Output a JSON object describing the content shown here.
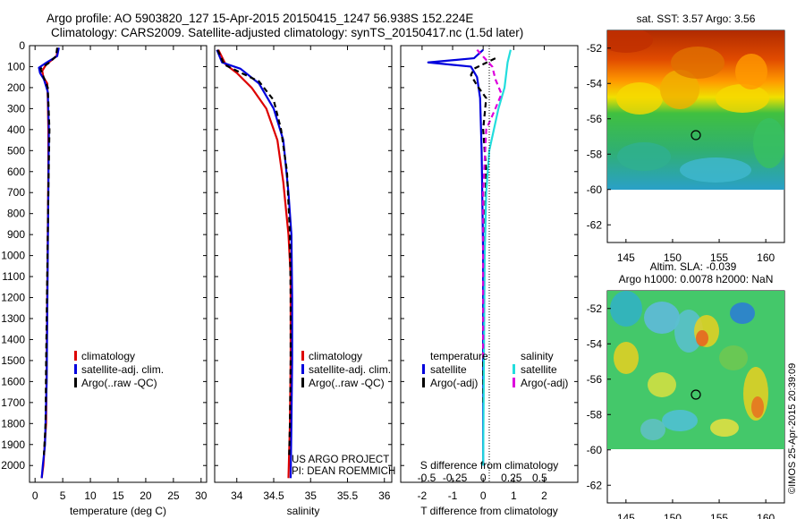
{
  "title_line1": "Argo profile: AO 5903820_127 15-Apr-2015 20150415_1247 56.938S 152.224E",
  "title_line2": "Climatology: CARS2009. Satellite-adjusted climatology: synTS_20150417.nc (1.5d later)",
  "colors": {
    "climatology": "#dd0000",
    "satellite": "#0000dd",
    "argo": "#000000",
    "sat_salinity": "#22dddd",
    "argo_adj": "#dd00dd"
  },
  "chart_data": [
    {
      "type": "line",
      "panel": "temperature",
      "xlabel": "temperature (deg C)",
      "ylabel": "",
      "xlim": [
        -1,
        31
      ],
      "ylim": [
        2080,
        0
      ],
      "xticks": [
        "0",
        "5",
        "10",
        "15",
        "20",
        "25",
        "30"
      ],
      "yticks": [
        "0",
        "100",
        "200",
        "300",
        "400",
        "500",
        "600",
        "700",
        "800",
        "900",
        "1000",
        "1100",
        "1200",
        "1300",
        "1400",
        "1500",
        "1600",
        "1700",
        "1800",
        "1900",
        "2000"
      ],
      "legend": [
        "climatology",
        "satellite-adj. clim.",
        "Argo(..raw -QC)"
      ],
      "series": [
        {
          "name": "climatology",
          "color": "#dd0000",
          "points": [
            [
              4.1,
              10
            ],
            [
              3.9,
              50
            ],
            [
              2.0,
              90
            ],
            [
              1.3,
              120
            ],
            [
              1.5,
              150
            ],
            [
              2.2,
              180
            ],
            [
              2.3,
              250
            ],
            [
              2.4,
              400
            ],
            [
              2.4,
              600
            ],
            [
              2.3,
              900
            ],
            [
              2.2,
              1200
            ],
            [
              2.1,
              1500
            ],
            [
              2.0,
              1800
            ],
            [
              1.5,
              2000
            ],
            [
              1.2,
              2060
            ]
          ]
        },
        {
          "name": "satellite-adj. clim.",
          "color": "#0000dd",
          "points": [
            [
              4.3,
              10
            ],
            [
              4.0,
              50
            ],
            [
              2.1,
              80
            ],
            [
              0.7,
              105
            ],
            [
              0.9,
              130
            ],
            [
              1.6,
              160
            ],
            [
              2.3,
              220
            ],
            [
              2.5,
              400
            ],
            [
              2.4,
              700
            ],
            [
              2.3,
              1000
            ],
            [
              2.2,
              1300
            ],
            [
              2.1,
              1600
            ],
            [
              1.8,
              1900
            ],
            [
              1.4,
              2000
            ],
            [
              1.2,
              2060
            ]
          ]
        },
        {
          "name": "Argo(..raw -QC)",
          "color": "#000000",
          "points": [
            [
              4.0,
              10
            ],
            [
              3.8,
              50
            ],
            [
              2.6,
              80
            ],
            [
              1.0,
              110
            ],
            [
              1.4,
              140
            ],
            [
              2.3,
              200
            ],
            [
              2.6,
              400
            ],
            [
              2.4,
              700
            ],
            [
              2.2,
              1100
            ],
            [
              2.0,
              1500
            ],
            [
              1.9,
              1800
            ],
            [
              1.6,
              1950
            ]
          ]
        }
      ]
    },
    {
      "type": "line",
      "panel": "salinity",
      "xlabel": "salinity",
      "ylabel": "",
      "xlim": [
        33.7,
        36.1
      ],
      "ylim": [
        2080,
        0
      ],
      "xticks": [
        "34",
        "34.5",
        "35",
        "35.5",
        "36"
      ],
      "legend": [
        "climatology",
        "satellite-adj. clim.",
        "Argo(..raw -QC)"
      ],
      "series": [
        {
          "name": "climatology",
          "color": "#dd0000",
          "points": [
            [
              33.75,
              20
            ],
            [
              33.85,
              90
            ],
            [
              34.0,
              130
            ],
            [
              34.2,
              200
            ],
            [
              34.4,
              300
            ],
            [
              34.55,
              450
            ],
            [
              34.63,
              650
            ],
            [
              34.7,
              900
            ],
            [
              34.73,
              1100
            ],
            [
              34.73,
              1500
            ],
            [
              34.72,
              1800
            ],
            [
              34.7,
              2060
            ]
          ]
        },
        {
          "name": "satellite-adj. clim.",
          "color": "#0000dd",
          "points": [
            [
              33.73,
              20
            ],
            [
              33.8,
              80
            ],
            [
              34.05,
              110
            ],
            [
              34.3,
              180
            ],
            [
              34.5,
              300
            ],
            [
              34.63,
              450
            ],
            [
              34.7,
              700
            ],
            [
              34.74,
              900
            ],
            [
              34.75,
              1200
            ],
            [
              34.75,
              1500
            ],
            [
              34.74,
              1800
            ],
            [
              34.73,
              2060
            ]
          ]
        },
        {
          "name": "Argo(..raw -QC)",
          "color": "#000000",
          "points": [
            [
              33.74,
              20
            ],
            [
              33.83,
              90
            ],
            [
              34.0,
              120
            ],
            [
              34.3,
              170
            ],
            [
              34.5,
              260
            ],
            [
              34.6,
              400
            ],
            [
              34.68,
              600
            ],
            [
              34.72,
              900
            ],
            [
              34.73,
              1200
            ],
            [
              34.73,
              1500
            ],
            [
              34.72,
              1800
            ],
            [
              34.71,
              1950
            ]
          ]
        }
      ],
      "annotation_line1": "US ARGO PROJECT",
      "annotation_line2": "PI: DEAN ROEMMICH"
    },
    {
      "type": "line",
      "panel": "difference",
      "xlabel": "T difference from climatology",
      "xlabel_top": "S difference from climatology",
      "xlim": [
        -2.7,
        3.1
      ],
      "ylim": [
        2080,
        0
      ],
      "xticks": [
        "-2",
        "-1",
        "0",
        "1",
        "2"
      ],
      "xticks_top": [
        "-0.5",
        "-0.25",
        "0",
        "0.25",
        "0.5"
      ],
      "legend_left_title": "temperature",
      "legend_right_title": "salinity",
      "legend": [
        "satellite",
        "Argo(-adj)",
        "satellite",
        "Argo(-adj)"
      ],
      "series": [
        {
          "name": "satellite",
          "group": "temperature",
          "color": "#0000dd",
          "points": [
            [
              0,
              20
            ],
            [
              -0.3,
              60
            ],
            [
              -1.8,
              80
            ],
            [
              -0.4,
              100
            ],
            [
              -0.2,
              150
            ],
            [
              -0.1,
              250
            ],
            [
              -0.05,
              500
            ],
            [
              0,
              1000
            ],
            [
              0,
              1500
            ],
            [
              0,
              2000
            ]
          ]
        },
        {
          "name": "Argo(-adj)",
          "group": "temperature",
          "color": "#000000",
          "points": [
            [
              0.4,
              60
            ],
            [
              -0.3,
              110
            ],
            [
              -0.4,
              140
            ],
            [
              -0.2,
              190
            ],
            [
              0.1,
              250
            ],
            [
              0,
              400
            ],
            [
              0.1,
              600
            ],
            [
              0.05,
              900
            ],
            [
              0,
              1300
            ],
            [
              0,
              1700
            ]
          ]
        },
        {
          "name": "satellite",
          "group": "salinity",
          "color": "#22dddd",
          "points": [
            [
              0.9,
              20
            ],
            [
              0.8,
              80
            ],
            [
              0.7,
              200
            ],
            [
              0.5,
              300
            ],
            [
              0.35,
              400
            ],
            [
              0.2,
              500
            ],
            [
              0.1,
              700
            ],
            [
              0.05,
              1000
            ],
            [
              0,
              2000
            ]
          ]
        },
        {
          "name": "Argo(-adj)",
          "group": "salinity",
          "color": "#dd00dd",
          "points": [
            [
              -0.2,
              20
            ],
            [
              0.3,
              100
            ],
            [
              0.4,
              160
            ],
            [
              0.6,
              230
            ],
            [
              0.4,
              300
            ],
            [
              0.1,
              400
            ],
            [
              0,
              700
            ],
            [
              0,
              1500
            ]
          ]
        }
      ]
    }
  ],
  "map_sst": {
    "title": "sat. SST: 3.57 Argo: 3.56",
    "xticks": [
      "145",
      "150",
      "155",
      "160"
    ],
    "yticks": [
      "-52",
      "-54",
      "-56",
      "-58",
      "-60",
      "-62"
    ]
  },
  "map_sla": {
    "title_line1": "Altim. SLA: -0.039",
    "title_line2": "Argo h1000: 0.0078 h2000: NaN",
    "xticks": [
      "145",
      "150",
      "155",
      "160"
    ],
    "yticks": [
      "-52",
      "-54",
      "-56",
      "-58",
      "-60",
      "-62"
    ]
  },
  "footer_stamp": "©IMOS 25-Apr-2015 20:39:09"
}
